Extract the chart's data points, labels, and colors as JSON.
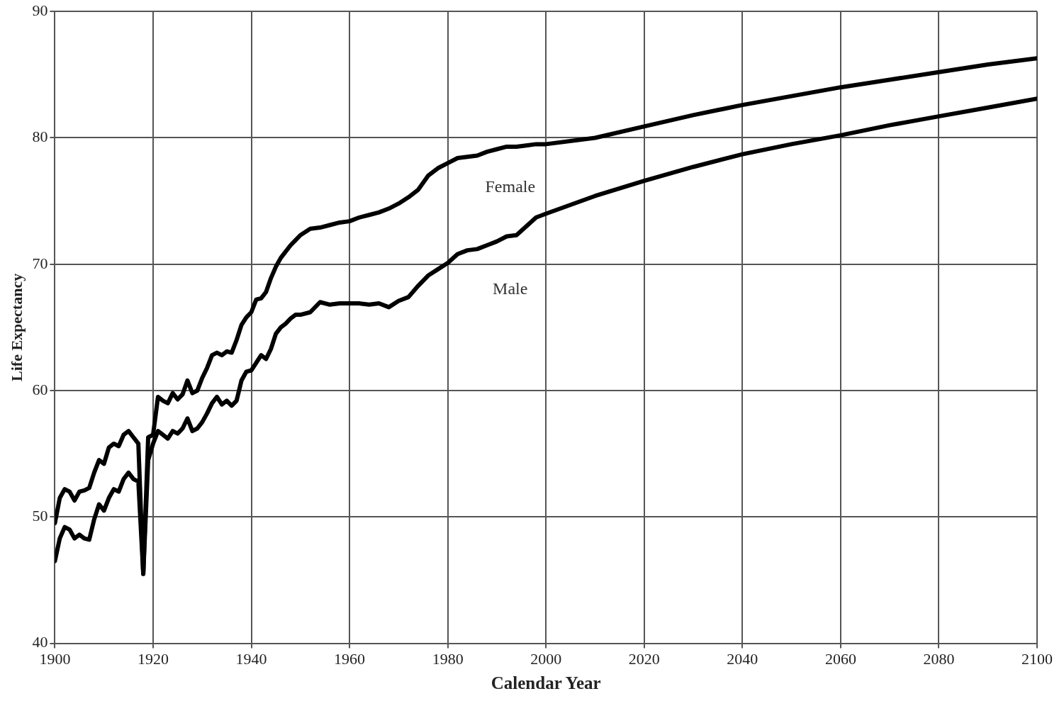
{
  "chart_data": {
    "type": "line",
    "xlabel": "Calendar Year",
    "ylabel": "Life Expectancy",
    "xlim": [
      1900,
      2100
    ],
    "xticks": [
      1900,
      1920,
      1940,
      1960,
      1980,
      2000,
      2020,
      2040,
      2060,
      2080,
      2100
    ],
    "ylim": [
      40,
      90
    ],
    "yticks": [
      40,
      50,
      60,
      70,
      80,
      90
    ],
    "grid": true,
    "legend": false,
    "marker": "none",
    "line_style": "solid",
    "series": [
      {
        "name": "Female",
        "color": "#000000",
        "x": [
          1900,
          1901,
          1902,
          1903,
          1904,
          1905,
          1906,
          1907,
          1908,
          1909,
          1910,
          1911,
          1912,
          1913,
          1914,
          1915,
          1916,
          1917,
          1918,
          1919,
          1920,
          1921,
          1922,
          1923,
          1924,
          1925,
          1926,
          1927,
          1928,
          1929,
          1930,
          1931,
          1932,
          1933,
          1934,
          1935,
          1936,
          1937,
          1938,
          1939,
          1940,
          1941,
          1942,
          1943,
          1944,
          1945,
          1946,
          1947,
          1948,
          1949,
          1950,
          1952,
          1954,
          1956,
          1958,
          1960,
          1962,
          1964,
          1966,
          1968,
          1970,
          1972,
          1974,
          1976,
          1978,
          1980,
          1982,
          1984,
          1986,
          1988,
          1990,
          1992,
          1994,
          1996,
          1998,
          2000,
          2010,
          2020,
          2030,
          2040,
          2050,
          2060,
          2070,
          2080,
          2090,
          2100
        ],
        "values": [
          49.5,
          51.5,
          52.2,
          52.0,
          51.3,
          52.0,
          52.1,
          52.3,
          53.5,
          54.5,
          54.2,
          55.5,
          55.8,
          55.6,
          56.5,
          56.8,
          56.3,
          55.8,
          45.5,
          56.3,
          56.5,
          59.5,
          59.2,
          59.0,
          59.8,
          59.3,
          59.7,
          60.8,
          59.8,
          60.0,
          61.0,
          61.8,
          62.8,
          63.0,
          62.8,
          63.1,
          63.0,
          64.0,
          65.2,
          65.8,
          66.2,
          67.2,
          67.3,
          67.8,
          68.9,
          69.8,
          70.5,
          71.0,
          71.5,
          71.9,
          72.3,
          72.8,
          72.9,
          73.1,
          73.3,
          73.4,
          73.7,
          73.9,
          74.1,
          74.4,
          74.8,
          75.3,
          75.9,
          77.0,
          77.6,
          78.0,
          78.4,
          78.5,
          78.6,
          78.9,
          79.1,
          79.3,
          79.3,
          79.4,
          79.5,
          79.5,
          80.0,
          80.9,
          81.8,
          82.6,
          83.3,
          84.0,
          84.6,
          85.2,
          85.8,
          86.3
        ]
      },
      {
        "name": "Male",
        "color": "#000000",
        "x": [
          1900,
          1901,
          1902,
          1903,
          1904,
          1905,
          1906,
          1907,
          1908,
          1909,
          1910,
          1911,
          1912,
          1913,
          1914,
          1915,
          1916,
          1917,
          1918,
          1919,
          1920,
          1921,
          1922,
          1923,
          1924,
          1925,
          1926,
          1927,
          1928,
          1929,
          1930,
          1931,
          1932,
          1933,
          1934,
          1935,
          1936,
          1937,
          1938,
          1939,
          1940,
          1941,
          1942,
          1943,
          1944,
          1945,
          1946,
          1947,
          1948,
          1949,
          1950,
          1952,
          1954,
          1956,
          1958,
          1960,
          1962,
          1964,
          1966,
          1968,
          1970,
          1972,
          1974,
          1976,
          1978,
          1980,
          1982,
          1984,
          1986,
          1988,
          1990,
          1992,
          1994,
          1996,
          1998,
          2000,
          2010,
          2020,
          2030,
          2040,
          2050,
          2060,
          2070,
          2080,
          2090,
          2100
        ],
        "values": [
          46.5,
          48.3,
          49.2,
          49.0,
          48.3,
          48.6,
          48.3,
          48.2,
          49.8,
          51.0,
          50.5,
          51.5,
          52.2,
          52.0,
          53.0,
          53.5,
          53.0,
          52.8,
          45.5,
          54.5,
          55.8,
          56.8,
          56.5,
          56.2,
          56.8,
          56.6,
          57.0,
          57.8,
          56.8,
          57.0,
          57.5,
          58.2,
          59.0,
          59.5,
          58.9,
          59.2,
          58.8,
          59.2,
          60.8,
          61.5,
          61.6,
          62.2,
          62.8,
          62.5,
          63.3,
          64.5,
          65.0,
          65.3,
          65.7,
          66.0,
          66.0,
          66.2,
          67.0,
          66.8,
          66.9,
          66.9,
          66.9,
          66.8,
          66.9,
          66.6,
          67.1,
          67.4,
          68.3,
          69.1,
          69.6,
          70.1,
          70.8,
          71.1,
          71.2,
          71.5,
          71.8,
          72.2,
          72.3,
          73.0,
          73.7,
          74.0,
          75.4,
          76.6,
          77.7,
          78.7,
          79.5,
          80.2,
          81.0,
          81.7,
          82.4,
          83.1
        ]
      }
    ]
  }
}
